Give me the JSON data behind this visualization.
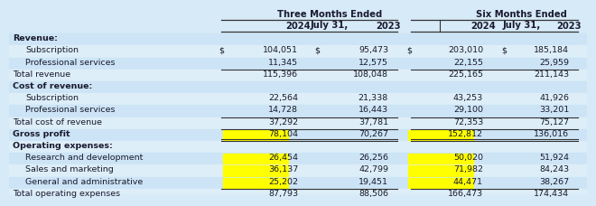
{
  "bg_color": "#d6eaf8",
  "row_alt_color": "#cce4f6",
  "row_white_color": "#ddeef8",
  "highlight_color": "#ffff00",
  "text_color": "#1a1a2e",
  "line_color": "#333333",
  "header_line_color": "#333333",
  "col_header1": "Three Months Ended\nJuly 31,",
  "col_header2": "Six Months Ended\nJuly 31,",
  "year_headers": [
    "2024",
    "2023",
    "2024",
    "2023"
  ],
  "font_size": 6.8,
  "header_font_size": 7.2,
  "rows": [
    {
      "label": "Revenue:",
      "indent": 0,
      "bold": true,
      "values": [
        null,
        null,
        null,
        null
      ],
      "dollar": [
        false,
        false,
        false,
        false
      ],
      "highlight": [],
      "topline": false,
      "doubleline": false,
      "shade": true
    },
    {
      "label": "Subscription",
      "indent": 1,
      "bold": false,
      "values": [
        "104,051",
        "95,473",
        "203,010",
        "185,184"
      ],
      "dollar": [
        true,
        true,
        true,
        true
      ],
      "highlight": [],
      "topline": false,
      "doubleline": false,
      "shade": false
    },
    {
      "label": "Professional services",
      "indent": 1,
      "bold": false,
      "values": [
        "11,345",
        "12,575",
        "22,155",
        "25,959"
      ],
      "dollar": [
        false,
        false,
        false,
        false
      ],
      "highlight": [],
      "topline": false,
      "doubleline": false,
      "shade": true
    },
    {
      "label": "Total revenue",
      "indent": 0,
      "bold": false,
      "values": [
        "115,396",
        "108,048",
        "225,165",
        "211,143"
      ],
      "dollar": [
        false,
        false,
        false,
        false
      ],
      "highlight": [],
      "topline": true,
      "doubleline": false,
      "shade": false
    },
    {
      "label": "Cost of revenue:",
      "indent": 0,
      "bold": true,
      "values": [
        null,
        null,
        null,
        null
      ],
      "dollar": [
        false,
        false,
        false,
        false
      ],
      "highlight": [],
      "topline": false,
      "doubleline": false,
      "shade": true
    },
    {
      "label": "Subscription",
      "indent": 1,
      "bold": false,
      "values": [
        "22,564",
        "21,338",
        "43,253",
        "41,926"
      ],
      "dollar": [
        false,
        false,
        false,
        false
      ],
      "highlight": [],
      "topline": false,
      "doubleline": false,
      "shade": false
    },
    {
      "label": "Professional services",
      "indent": 1,
      "bold": false,
      "values": [
        "14,728",
        "16,443",
        "29,100",
        "33,201"
      ],
      "dollar": [
        false,
        false,
        false,
        false
      ],
      "highlight": [],
      "topline": false,
      "doubleline": false,
      "shade": true
    },
    {
      "label": "Total cost of revenue",
      "indent": 0,
      "bold": false,
      "values": [
        "37,292",
        "37,781",
        "72,353",
        "75,127"
      ],
      "dollar": [
        false,
        false,
        false,
        false
      ],
      "highlight": [],
      "topline": true,
      "doubleline": false,
      "shade": false
    },
    {
      "label": "Gross profit",
      "indent": 0,
      "bold": true,
      "values": [
        "78,104",
        "70,267",
        "152,812",
        "136,016"
      ],
      "dollar": [
        false,
        false,
        false,
        false
      ],
      "highlight": [
        0,
        2
      ],
      "topline": true,
      "doubleline": true,
      "shade": true
    },
    {
      "label": "Operating expenses:",
      "indent": 0,
      "bold": true,
      "values": [
        null,
        null,
        null,
        null
      ],
      "dollar": [
        false,
        false,
        false,
        false
      ],
      "highlight": [],
      "topline": false,
      "doubleline": false,
      "shade": false
    },
    {
      "label": "Research and development",
      "indent": 1,
      "bold": false,
      "values": [
        "26,454",
        "26,256",
        "50,020",
        "51,924"
      ],
      "dollar": [
        false,
        false,
        false,
        false
      ],
      "highlight": [
        0,
        2
      ],
      "topline": false,
      "doubleline": false,
      "shade": true
    },
    {
      "label": "Sales and marketing",
      "indent": 1,
      "bold": false,
      "values": [
        "36,137",
        "42,799",
        "71,982",
        "84,243"
      ],
      "dollar": [
        false,
        false,
        false,
        false
      ],
      "highlight": [
        0,
        2
      ],
      "topline": false,
      "doubleline": false,
      "shade": false
    },
    {
      "label": "General and administrative",
      "indent": 1,
      "bold": false,
      "values": [
        "25,202",
        "19,451",
        "44,471",
        "38,267"
      ],
      "dollar": [
        false,
        false,
        false,
        false
      ],
      "highlight": [
        0,
        2
      ],
      "topline": false,
      "doubleline": false,
      "shade": true
    },
    {
      "label": "Total operating expenses",
      "indent": 0,
      "bold": false,
      "values": [
        "87,793",
        "88,506",
        "166,473",
        "174,434"
      ],
      "dollar": [
        false,
        false,
        false,
        false
      ],
      "highlight": [],
      "topline": true,
      "doubleline": false,
      "shade": false
    }
  ]
}
